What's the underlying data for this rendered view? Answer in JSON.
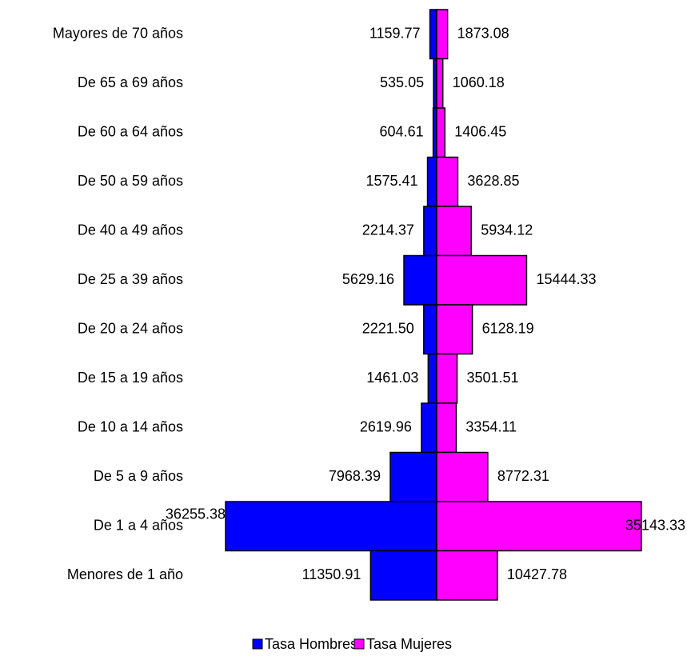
{
  "chart_data": {
    "type": "pyramid",
    "categories": [
      "Mayores de 70 años",
      "De 65 a 69 años",
      "De 60 a 64 años",
      "De 50 a 59 años",
      "De 40 a 49 años",
      "De 25 a 39 años",
      "De 20 a 24 años",
      "De 15 a 19 años",
      "De 10 a 14 años",
      "De 5 a 9 años",
      "De 1 a 4 años",
      "Menores de 1 año"
    ],
    "series": [
      {
        "name": "Tasa Hombres",
        "color": "#0000ff",
        "values": [
          1159.77,
          535.05,
          604.61,
          1575.41,
          2214.37,
          5629.16,
          2221.5,
          1461.03,
          2619.96,
          7968.39,
          36255.38,
          11350.91
        ],
        "value_labels": [
          "1159.77",
          "535.05",
          "604.61",
          "1575.41",
          "2214.37",
          "5629.16",
          "2221.50",
          "1461.03",
          "2619.96",
          "7968.39",
          "36255.38",
          "11350.91"
        ]
      },
      {
        "name": "Tasa Mujeres",
        "color": "#ff00ff",
        "values": [
          1873.08,
          1060.18,
          1406.45,
          3628.85,
          5934.12,
          15444.33,
          6128.19,
          3501.51,
          3354.11,
          8772.31,
          35143.33,
          10427.78
        ],
        "value_labels": [
          "1873.08",
          "1060.18",
          "1406.45",
          "3628.85",
          "5934.12",
          "15444.33",
          "6128.19",
          "3501.51",
          "3354.11",
          "8772.31",
          "35143.33",
          "10427.78"
        ]
      }
    ]
  }
}
